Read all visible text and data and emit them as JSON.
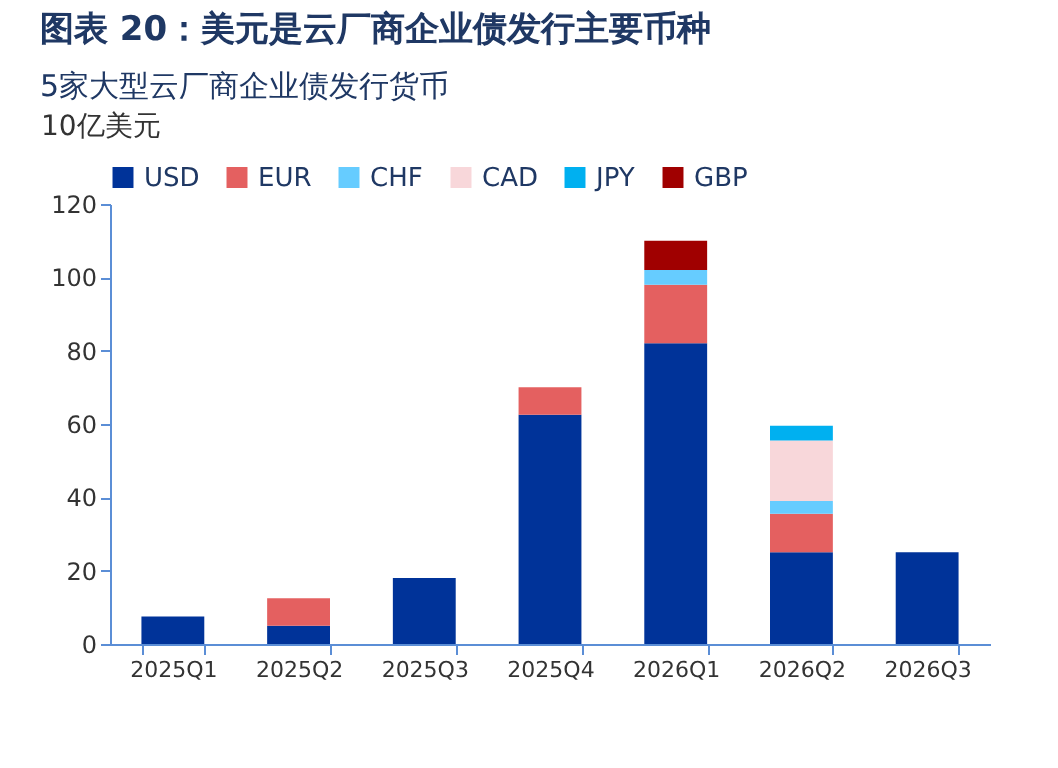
{
  "chart_data": {
    "type": "bar",
    "title": "图表 20：美元是云厂商企业债发行主要币种",
    "subtitle": "5家大型云厂商企业债发行货币",
    "ylabel": "10亿美元",
    "categories": [
      "2025Q1",
      "2025Q2",
      "2025Q3",
      "2025Q4",
      "2026Q1",
      "2026Q2",
      "2026Q3"
    ],
    "stacked": true,
    "ylim": [
      0,
      120
    ],
    "yticks": [
      0,
      20,
      40,
      60,
      80,
      100,
      120
    ],
    "grid": false,
    "legend": "top",
    "series": [
      {
        "name": "USD",
        "color": "#003399",
        "values": [
          7.5,
          5,
          18,
          62.5,
          82,
          25,
          25
        ]
      },
      {
        "name": "EUR",
        "color": "#e46060",
        "values": [
          null,
          7.5,
          null,
          7.5,
          16,
          10.5,
          null
        ]
      },
      {
        "name": "CHF",
        "color": "#66ccff",
        "values": [
          null,
          null,
          null,
          null,
          4,
          3.5,
          null
        ]
      },
      {
        "name": "CAD",
        "color": "#f8d7da",
        "values": [
          null,
          null,
          null,
          null,
          null,
          16.5,
          null
        ]
      },
      {
        "name": "JPY",
        "color": "#00b0f0",
        "values": [
          null,
          null,
          null,
          null,
          null,
          4,
          null
        ]
      },
      {
        "name": "GBP",
        "color": "#a00000",
        "values": [
          null,
          null,
          null,
          null,
          8,
          null,
          null
        ]
      }
    ]
  }
}
